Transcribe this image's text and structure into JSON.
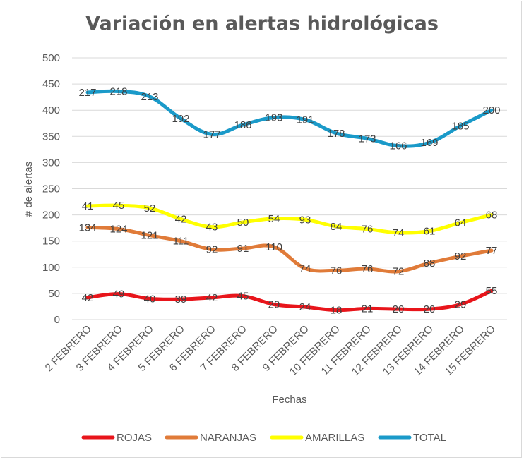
{
  "chart_data": {
    "type": "line",
    "title": "Variación en alertas hidrológicas",
    "xlabel": "Fechas",
    "ylabel": "# de alertas",
    "ylim": [
      0,
      500
    ],
    "yticks": [
      0,
      50,
      100,
      150,
      200,
      250,
      300,
      350,
      400,
      450,
      500
    ],
    "grid": true,
    "legend": "bottom",
    "stacked": true,
    "categories": [
      "2 FEBRERO",
      "3 FEBRERO",
      "4 FEBRERO",
      "5 FEBRERO",
      "6 FEBRERO",
      "7 FEBRERO",
      "8 FEBRERO",
      "9 FEBRERO",
      "10 FEBRERO",
      "11 FEBRERO",
      "12 FEBRERO",
      "13 FEBRERO",
      "14 FEBRERO",
      "15 FEBRERO"
    ],
    "series": [
      {
        "name": "ROJAS",
        "color": "#e8151b",
        "values": [
          42,
          49,
          40,
          39,
          42,
          45,
          29,
          24,
          18,
          21,
          20,
          20,
          29,
          55
        ]
      },
      {
        "name": "NARANJAS",
        "color": "#e07b39",
        "values": [
          134,
          124,
          121,
          111,
          92,
          91,
          110,
          74,
          76,
          76,
          72,
          88,
          92,
          77
        ]
      },
      {
        "name": "AMARILLAS",
        "color": "#ffff00",
        "values": [
          41,
          45,
          52,
          42,
          43,
          50,
          54,
          93,
          84,
          76,
          74,
          61,
          64,
          68
        ]
      },
      {
        "name": "TOTAL",
        "color": "#1a9ac9",
        "values": [
          217,
          218,
          213,
          192,
          177,
          186,
          193,
          191,
          178,
          173,
          166,
          169,
          185,
          200
        ]
      }
    ]
  }
}
